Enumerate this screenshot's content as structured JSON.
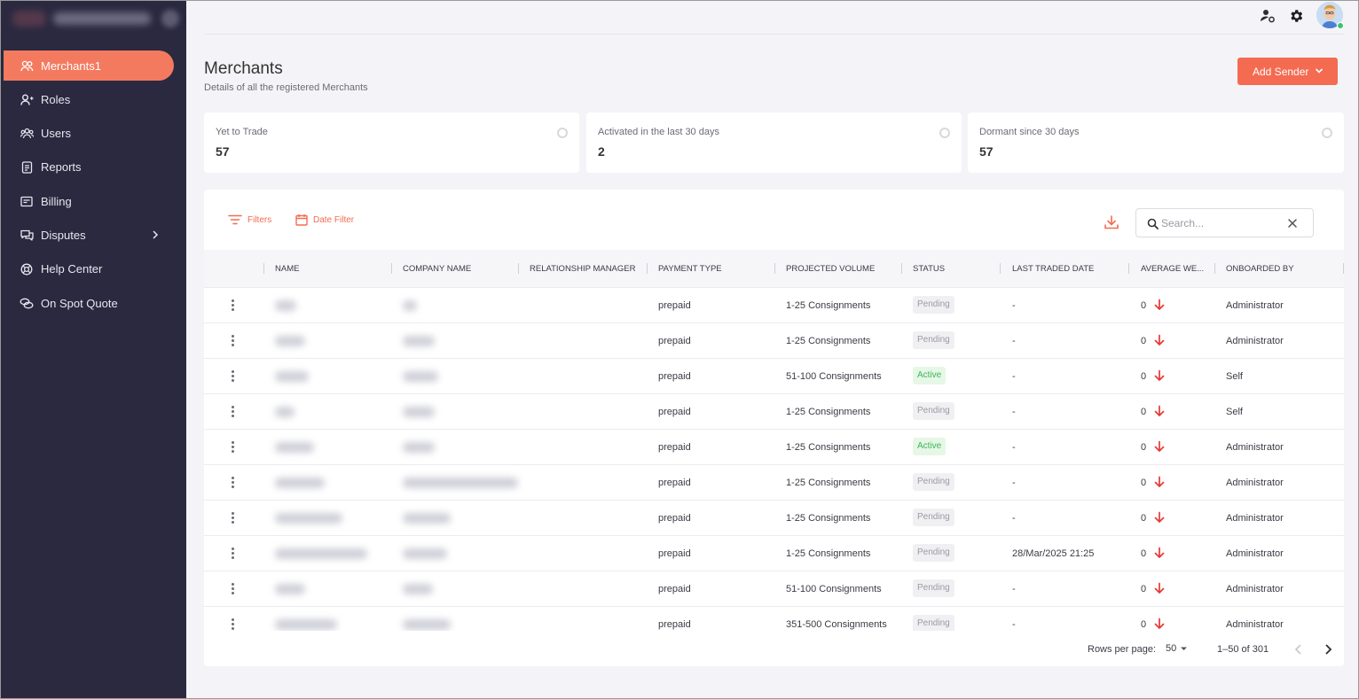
{
  "nav": {
    "items": [
      {
        "label": "Merchants1",
        "icon": "merchants-icon",
        "active": true
      },
      {
        "label": "Roles",
        "icon": "roles-icon"
      },
      {
        "label": "Users",
        "icon": "users-icon"
      },
      {
        "label": "Reports",
        "icon": "reports-icon"
      },
      {
        "label": "Billing",
        "icon": "billing-icon"
      },
      {
        "label": "Disputes",
        "icon": "disputes-icon",
        "expandable": true
      },
      {
        "label": "Help Center",
        "icon": "help-center-icon"
      },
      {
        "label": "On Spot Quote",
        "icon": "quote-icon"
      }
    ]
  },
  "header": {
    "title": "Merchants",
    "subtitle": "Details of all the registered Merchants",
    "add_button": "Add Sender"
  },
  "cards": [
    {
      "label": "Yet to Trade",
      "value": "57"
    },
    {
      "label": "Activated in the last 30 days",
      "value": "2"
    },
    {
      "label": "Dormant since 30 days",
      "value": "57"
    }
  ],
  "toolbar": {
    "filters": "Filters",
    "date_filter": "Date Filter",
    "search_placeholder": "Search..."
  },
  "table": {
    "columns": [
      "NAME",
      "COMPANY NAME",
      "RELATIONSHIP MANAGER",
      "PAYMENT TYPE",
      "PROJECTED VOLUME",
      "STATUS",
      "LAST TRADED DATE",
      "AVERAGE WE...",
      "ONBOARDED BY"
    ],
    "rows": [
      {
        "payment": "prepaid",
        "volume": "1-25 Consignments",
        "status": "Pending",
        "last_traded": "-",
        "avg": "0",
        "onboarded": "Administrator"
      },
      {
        "payment": "prepaid",
        "volume": "1-25 Consignments",
        "status": "Pending",
        "last_traded": "-",
        "avg": "0",
        "onboarded": "Administrator"
      },
      {
        "payment": "prepaid",
        "volume": "51-100 Consignments",
        "status": "Active",
        "last_traded": "-",
        "avg": "0",
        "onboarded": "Self"
      },
      {
        "payment": "prepaid",
        "volume": "1-25 Consignments",
        "status": "Pending",
        "last_traded": "-",
        "avg": "0",
        "onboarded": "Self"
      },
      {
        "payment": "prepaid",
        "volume": "1-25 Consignments",
        "status": "Active",
        "last_traded": "-",
        "avg": "0",
        "onboarded": "Administrator"
      },
      {
        "payment": "prepaid",
        "volume": "1-25 Consignments",
        "status": "Pending",
        "last_traded": "-",
        "avg": "0",
        "onboarded": "Administrator"
      },
      {
        "payment": "prepaid",
        "volume": "1-25 Consignments",
        "status": "Pending",
        "last_traded": "-",
        "avg": "0",
        "onboarded": "Administrator"
      },
      {
        "payment": "prepaid",
        "volume": "1-25 Consignments",
        "status": "Pending",
        "last_traded": "28/Mar/2025 21:25",
        "avg": "0",
        "onboarded": "Administrator"
      },
      {
        "payment": "prepaid",
        "volume": "51-100 Consignments",
        "status": "Pending",
        "last_traded": "-",
        "avg": "0",
        "onboarded": "Administrator"
      },
      {
        "payment": "prepaid",
        "volume": "351-500 Consignments",
        "status": "Pending",
        "last_traded": "-",
        "avg": "0",
        "onboarded": "Administrator"
      }
    ]
  },
  "pagination": {
    "rows_per_page_label": "Rows per page:",
    "rows_per_page": "50",
    "range": "1–50 of 301"
  },
  "colors": {
    "sidebar": "#2a2940",
    "accent": "#f46b52",
    "active_badge": "#3cb55a",
    "trend_down": "#e53935"
  }
}
